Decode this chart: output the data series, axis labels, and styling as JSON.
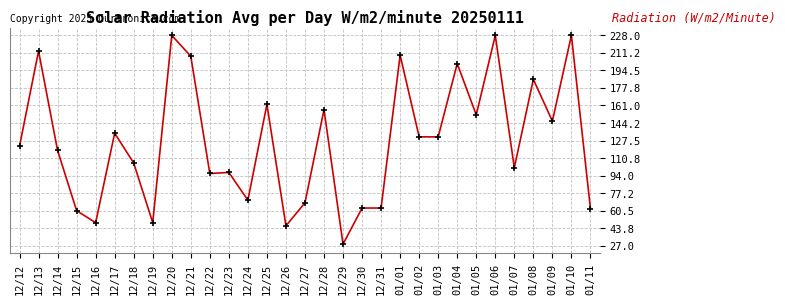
{
  "title": "Solar Radiation Avg per Day W/m2/minute 20250111",
  "copyright": "Copyright 2025 Curtronics.com",
  "legend_label": "Radiation (W/m2/Minute)",
  "labels": [
    "12/12",
    "12/13",
    "12/14",
    "12/15",
    "12/16",
    "12/17",
    "12/18",
    "12/19",
    "12/20",
    "12/21",
    "12/22",
    "12/23",
    "12/24",
    "12/25",
    "12/26",
    "12/27",
    "12/28",
    "12/29",
    "12/30",
    "12/31",
    "01/01",
    "01/02",
    "01/03",
    "01/04",
    "01/05",
    "01/06",
    "01/07",
    "01/08",
    "01/09",
    "01/10",
    "01/11"
  ],
  "values": [
    122.0,
    213.0,
    118.0,
    60.5,
    49.0,
    134.5,
    106.0,
    49.0,
    228.0,
    208.0,
    96.0,
    97.0,
    70.5,
    162.0,
    46.0,
    68.0,
    157.0,
    28.5,
    63.0,
    63.0,
    209.0,
    131.0,
    131.0,
    201.0,
    152.0,
    228.0,
    101.5,
    186.0,
    146.0,
    228.0,
    62.5
  ],
  "line_color": "#cc0000",
  "marker_color": "#000000",
  "background_color": "#ffffff",
  "grid_color": "#c0c0c0",
  "title_fontsize": 11,
  "copyright_fontsize": 7,
  "legend_fontsize": 8.5,
  "tick_fontsize": 7.5,
  "ytick_values": [
    27.0,
    43.8,
    60.5,
    77.2,
    94.0,
    110.8,
    127.5,
    144.2,
    161.0,
    177.8,
    194.5,
    211.2,
    228.0
  ],
  "ymin": 20.0,
  "ymax": 235.0
}
